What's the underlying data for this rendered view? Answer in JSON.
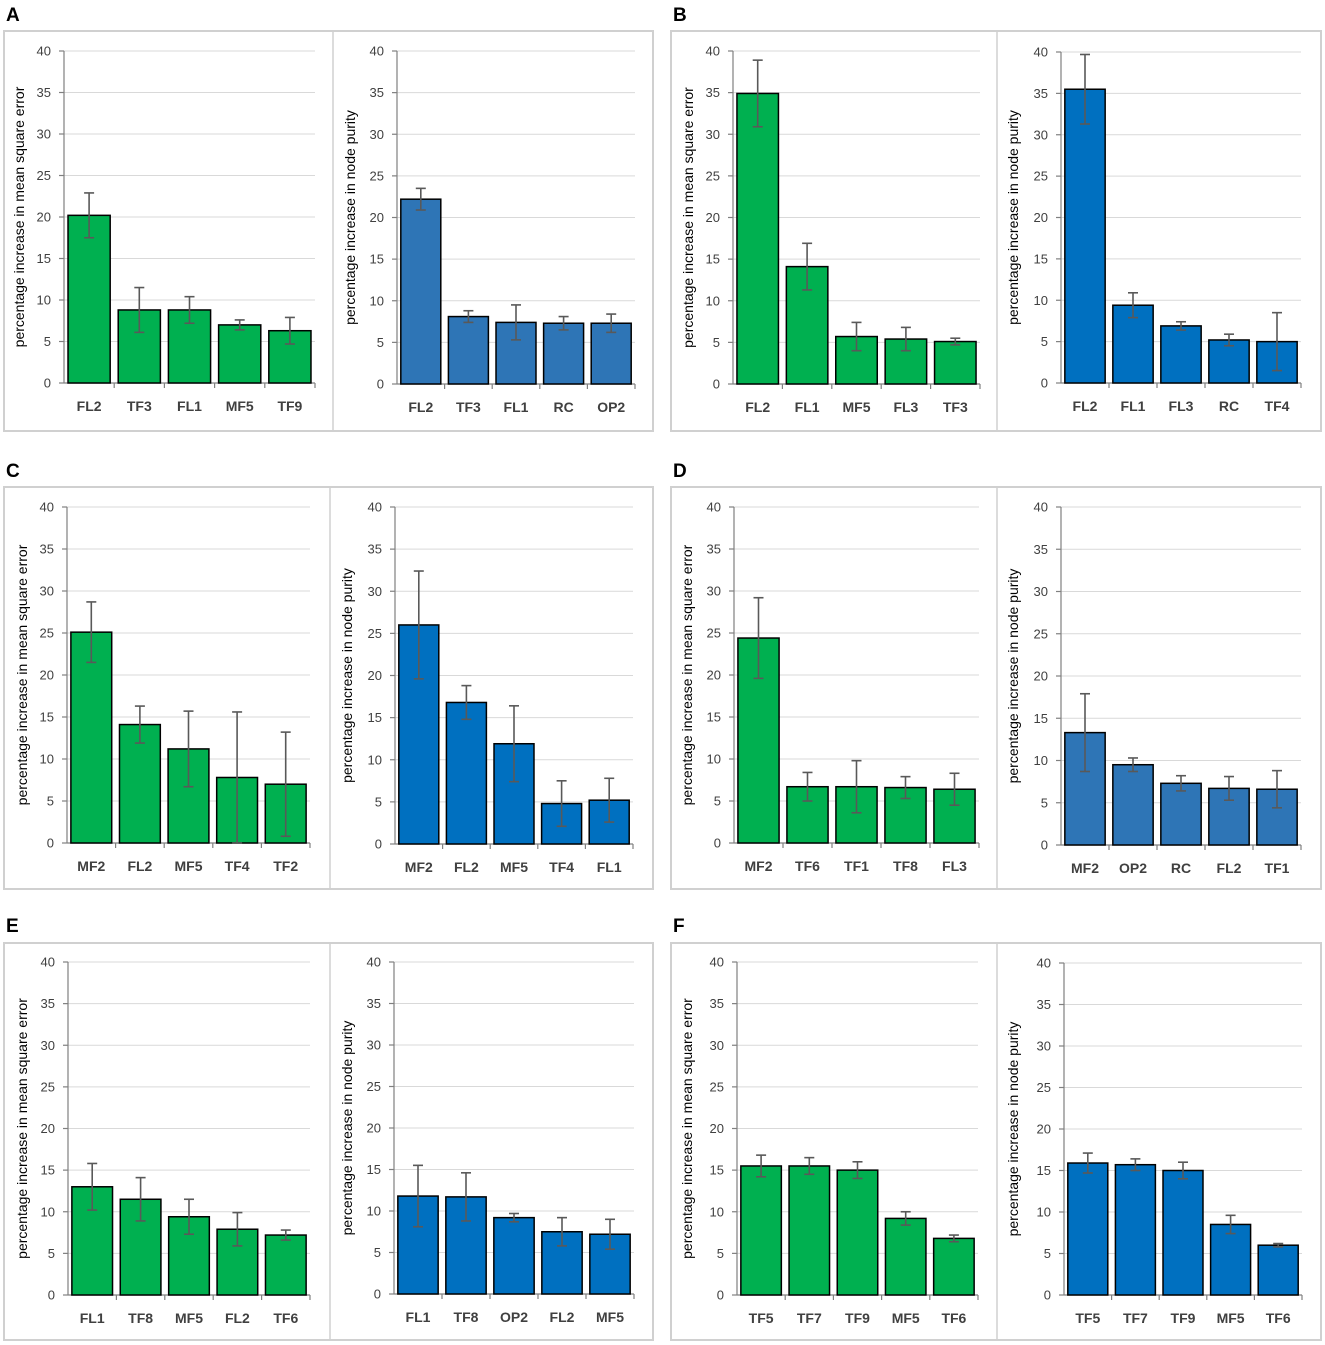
{
  "colors": {
    "green": "#00b050",
    "blue": "#0070c0",
    "steel_blue": "#2e75b6"
  },
  "panels": [
    {
      "label": "A"
    },
    {
      "label": "B"
    },
    {
      "label": "C"
    },
    {
      "label": "D"
    },
    {
      "label": "E"
    },
    {
      "label": "F"
    }
  ],
  "chart_data": [
    {
      "panel": "A",
      "type": "bar",
      "ylabel": "percentage increase in mean square error",
      "ylim": [
        0,
        40
      ],
      "yticks": [
        0,
        5,
        10,
        15,
        20,
        25,
        30,
        35,
        40
      ],
      "color": "#00b050",
      "categories": [
        "FL2",
        "TF3",
        "FL1",
        "MF5",
        "TF9"
      ],
      "values": [
        20.2,
        8.8,
        8.8,
        7.0,
        6.3
      ],
      "errors": [
        2.7,
        2.7,
        1.6,
        0.6,
        1.6
      ]
    },
    {
      "panel": "A",
      "type": "bar",
      "ylabel": "percentage increase in node purity",
      "ylim": [
        0,
        40
      ],
      "yticks": [
        0,
        5,
        10,
        15,
        20,
        25,
        30,
        35,
        40
      ],
      "color": "#2e75b6",
      "categories": [
        "FL2",
        "TF3",
        "FL1",
        "RC",
        "OP2"
      ],
      "values": [
        22.2,
        8.1,
        7.4,
        7.3,
        7.3
      ],
      "errors": [
        1.3,
        0.7,
        2.1,
        0.8,
        1.1
      ]
    },
    {
      "panel": "B",
      "type": "bar",
      "ylabel": "percentage increase in mean square error",
      "ylim": [
        0,
        40
      ],
      "yticks": [
        0,
        5,
        10,
        15,
        20,
        25,
        30,
        35,
        40
      ],
      "color": "#00b050",
      "categories": [
        "FL2",
        "FL1",
        "MF5",
        "FL3",
        "TF3"
      ],
      "values": [
        34.9,
        14.1,
        5.7,
        5.4,
        5.1
      ],
      "errors": [
        4.0,
        2.8,
        1.7,
        1.4,
        0.4
      ]
    },
    {
      "panel": "B",
      "type": "bar",
      "ylabel": "percentage increase in node purity",
      "ylim": [
        0,
        40
      ],
      "yticks": [
        0,
        5,
        10,
        15,
        20,
        25,
        30,
        35,
        40
      ],
      "color": "#0070c0",
      "categories": [
        "FL2",
        "FL1",
        "FL3",
        "RC",
        "TF4"
      ],
      "values": [
        35.5,
        9.4,
        6.9,
        5.2,
        5.0
      ],
      "errors": [
        4.2,
        1.5,
        0.5,
        0.7,
        3.5
      ]
    },
    {
      "panel": "C",
      "type": "bar",
      "ylabel": "percentage increase in mean square error",
      "ylim": [
        0,
        40
      ],
      "yticks": [
        0,
        5,
        10,
        15,
        20,
        25,
        30,
        35,
        40
      ],
      "color": "#00b050",
      "categories": [
        "MF2",
        "FL2",
        "MF5",
        "TF4",
        "TF2"
      ],
      "values": [
        25.1,
        14.1,
        11.2,
        7.8,
        7.0
      ],
      "errors": [
        3.6,
        2.2,
        4.5,
        7.8,
        6.2
      ]
    },
    {
      "panel": "C",
      "type": "bar",
      "ylabel": "percentage increase in node purity",
      "ylim": [
        0,
        40
      ],
      "yticks": [
        0,
        5,
        10,
        15,
        20,
        25,
        30,
        35,
        40
      ],
      "color": "#0070c0",
      "categories": [
        "MF2",
        "FL2",
        "MF5",
        "TF4",
        "FL1"
      ],
      "values": [
        26.0,
        16.8,
        11.9,
        4.8,
        5.2
      ],
      "errors": [
        6.4,
        2.0,
        4.5,
        2.7,
        2.6
      ]
    },
    {
      "panel": "D",
      "type": "bar",
      "ylabel": "percentage increase in mean square error",
      "ylim": [
        0,
        40
      ],
      "yticks": [
        0,
        5,
        10,
        15,
        20,
        25,
        30,
        35,
        40
      ],
      "color": "#00b050",
      "categories": [
        "MF2",
        "TF6",
        "TF1",
        "TF8",
        "FL3"
      ],
      "values": [
        24.4,
        6.7,
        6.7,
        6.6,
        6.4
      ],
      "errors": [
        4.8,
        1.7,
        3.1,
        1.3,
        1.9
      ]
    },
    {
      "panel": "D",
      "type": "bar",
      "ylabel": "percentage increase in node purity",
      "ylim": [
        0,
        40
      ],
      "yticks": [
        0,
        5,
        10,
        15,
        20,
        25,
        30,
        35,
        40
      ],
      "color": "#2e75b6",
      "categories": [
        "MF2",
        "OP2",
        "RC",
        "FL2",
        "TF1"
      ],
      "values": [
        13.3,
        9.5,
        7.3,
        6.7,
        6.6
      ],
      "errors": [
        4.6,
        0.8,
        0.9,
        1.4,
        2.2
      ]
    },
    {
      "panel": "E",
      "type": "bar",
      "ylabel": "percentage increase in mean square error",
      "ylim": [
        0,
        40
      ],
      "yticks": [
        0,
        5,
        10,
        15,
        20,
        25,
        30,
        35,
        40
      ],
      "color": "#00b050",
      "categories": [
        "FL1",
        "TF8",
        "MF5",
        "FL2",
        "TF6"
      ],
      "values": [
        13.0,
        11.5,
        9.4,
        7.9,
        7.2
      ],
      "errors": [
        2.8,
        2.6,
        2.1,
        2.0,
        0.6
      ]
    },
    {
      "panel": "E",
      "type": "bar",
      "ylabel": "percentage increase in node purity",
      "ylim": [
        0,
        40
      ],
      "yticks": [
        0,
        5,
        10,
        15,
        20,
        25,
        30,
        35,
        40
      ],
      "color": "#0070c0",
      "categories": [
        "FL1",
        "TF8",
        "OP2",
        "FL2",
        "MF5"
      ],
      "values": [
        11.8,
        11.7,
        9.2,
        7.5,
        7.2
      ],
      "errors": [
        3.7,
        2.9,
        0.5,
        1.7,
        1.8
      ]
    },
    {
      "panel": "F",
      "type": "bar",
      "ylabel": "percentage increase in mean square error",
      "ylim": [
        0,
        40
      ],
      "yticks": [
        0,
        5,
        10,
        15,
        20,
        25,
        30,
        35,
        40
      ],
      "color": "#00b050",
      "categories": [
        "TF5",
        "TF7",
        "TF9",
        "MF5",
        "TF6"
      ],
      "values": [
        15.5,
        15.5,
        15.0,
        9.2,
        6.8
      ],
      "errors": [
        1.3,
        1.0,
        1.0,
        0.8,
        0.4
      ]
    },
    {
      "panel": "F",
      "type": "bar",
      "ylabel": "percentage increase in node purity",
      "ylim": [
        0,
        40
      ],
      "yticks": [
        0,
        5,
        10,
        15,
        20,
        25,
        30,
        35,
        40
      ],
      "color": "#0070c0",
      "categories": [
        "TF5",
        "TF7",
        "TF9",
        "MF5",
        "TF6"
      ],
      "values": [
        15.9,
        15.7,
        15.0,
        8.5,
        6.0
      ],
      "errors": [
        1.2,
        0.7,
        1.0,
        1.1,
        0.2
      ]
    }
  ]
}
